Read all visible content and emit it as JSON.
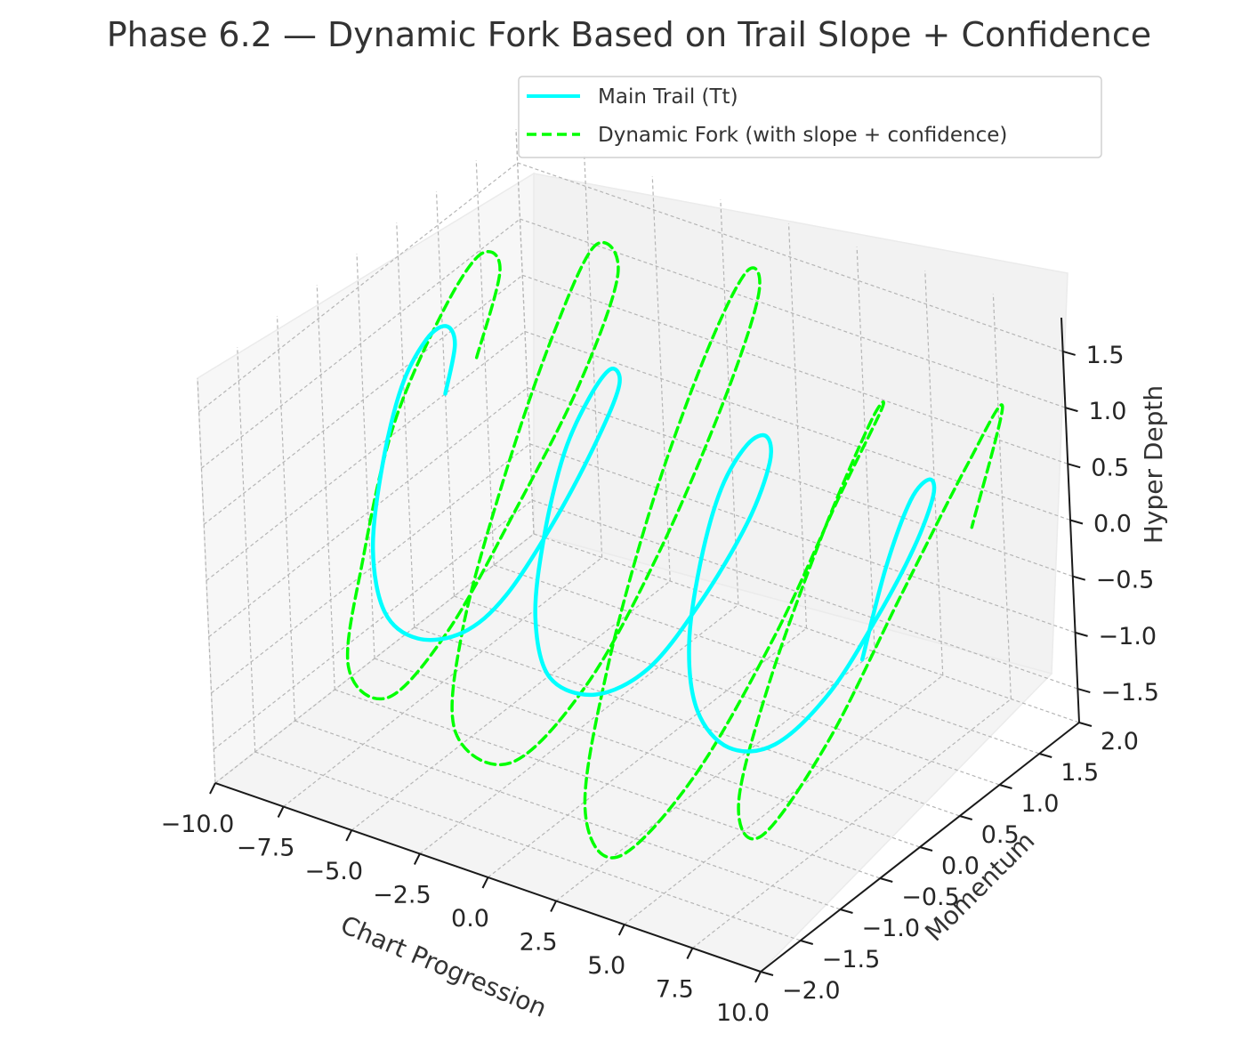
{
  "chart_data": {
    "type": "line",
    "projection": "3d",
    "title": "Phase 6.2 — Dynamic Fork Based on Trail Slope + Confidence",
    "xlabel": "Chart Progression",
    "ylabel": "Momentum",
    "zlabel": "Hyper Depth",
    "x_ticks": [
      "−10.0",
      "−7.5",
      "−5.0",
      "−2.5",
      "0.0",
      "2.5",
      "5.0",
      "7.5",
      "10.0"
    ],
    "y_ticks": [
      "−2.0",
      "−1.5",
      "−1.0",
      "−0.5",
      "0.0",
      "0.5",
      "1.0",
      "1.5",
      "2.0"
    ],
    "z_ticks": [
      "−1.5",
      "−1.0",
      "−0.5",
      "0.0",
      "0.5",
      "1.0",
      "1.5"
    ],
    "xlim": [
      -10,
      10
    ],
    "ylim": [
      -2,
      2
    ],
    "zlim": [
      -1.8,
      1.8
    ],
    "grid": true,
    "legend_position": "top-right",
    "series": [
      {
        "name": "Main Trail (Tt)",
        "color": "#00ffff",
        "style": "solid",
        "points": [
          [
            -10,
            1.0,
            0.0
          ],
          [
            -9.5,
            0.98,
            0.49
          ],
          [
            -9,
            0.72,
            0.84
          ],
          [
            -8.5,
            0.31,
            0.99
          ],
          [
            -8,
            -0.18,
            0.88
          ],
          [
            -7.5,
            -0.62,
            0.46
          ],
          [
            -7,
            -0.94,
            -0.06
          ],
          [
            -6.5,
            -0.99,
            -0.55
          ],
          [
            -6,
            -0.77,
            -0.86
          ],
          [
            -5.5,
            -0.38,
            -0.98
          ],
          [
            -5,
            0.0,
            -0.82
          ],
          [
            -4.5,
            0.5,
            -0.35
          ],
          [
            -4,
            0.9,
            0.2
          ],
          [
            -3.5,
            1.0,
            0.63
          ],
          [
            -3,
            0.74,
            0.95
          ],
          [
            -2.5,
            0.3,
            0.98
          ],
          [
            -2,
            -0.2,
            0.8
          ],
          [
            -1.5,
            -0.65,
            0.35
          ],
          [
            -1,
            -0.96,
            -0.15
          ],
          [
            -0.5,
            -0.98,
            -0.63
          ],
          [
            0,
            -0.6,
            -0.95
          ],
          [
            0.5,
            -0.1,
            -0.95
          ],
          [
            1,
            0.4,
            -0.6
          ],
          [
            1.5,
            0.85,
            -0.1
          ],
          [
            2,
            0.99,
            0.4
          ],
          [
            2.5,
            0.8,
            0.78
          ],
          [
            3,
            0.4,
            0.97
          ],
          [
            3.5,
            -0.1,
            0.9
          ],
          [
            4,
            -0.55,
            0.55
          ],
          [
            4.5,
            -0.9,
            0.05
          ],
          [
            5,
            -1.0,
            -0.45
          ],
          [
            5.5,
            -0.8,
            -0.85
          ],
          [
            6,
            -0.4,
            -1.0
          ],
          [
            6.5,
            0.1,
            -0.8
          ],
          [
            7,
            0.55,
            -0.35
          ],
          [
            7.5,
            0.9,
            0.15
          ],
          [
            8,
            1.0,
            0.6
          ],
          [
            8.5,
            0.8,
            0.9
          ],
          [
            9,
            0.4,
            0.98
          ],
          [
            9.5,
            -0.1,
            0.7
          ],
          [
            10,
            -0.6,
            0.2
          ]
        ]
      },
      {
        "name": "Dynamic Fork (with slope + confidence)",
        "color": "#00ff00",
        "style": "dashed",
        "points": [
          [
            -10,
            1.4,
            0.1
          ],
          [
            -9.6,
            1.6,
            0.8
          ],
          [
            -9.1,
            1.2,
            1.2
          ],
          [
            -8.5,
            0.5,
            1.1
          ],
          [
            -8,
            -0.3,
            0.6
          ],
          [
            -7.5,
            -0.9,
            -0.2
          ],
          [
            -7,
            -1.3,
            -0.9
          ],
          [
            -6.5,
            -1.0,
            -1.3
          ],
          [
            -6,
            -0.4,
            -1.0
          ],
          [
            -5.5,
            0.3,
            -0.3
          ],
          [
            -5,
            1.0,
            0.5
          ],
          [
            -4.6,
            1.4,
            1.3
          ],
          [
            -4.2,
            1.0,
            1.8
          ],
          [
            -3.8,
            0.3,
            1.4
          ],
          [
            -3.4,
            -0.5,
            0.6
          ],
          [
            -3,
            -1.2,
            -0.3
          ],
          [
            -2.5,
            -1.5,
            -1.0
          ],
          [
            -2,
            -1.0,
            -1.5
          ],
          [
            -1.5,
            -0.2,
            -1.2
          ],
          [
            -1,
            0.6,
            -0.4
          ],
          [
            -0.5,
            1.3,
            0.6
          ],
          [
            0,
            1.6,
            1.4
          ],
          [
            0.5,
            1.3,
            1.8
          ],
          [
            1,
            0.6,
            1.5
          ],
          [
            1.5,
            -0.3,
            0.7
          ],
          [
            2,
            -1.1,
            -0.3
          ],
          [
            2.5,
            -1.6,
            -1.2
          ],
          [
            3,
            -1.4,
            -1.7
          ],
          [
            3.5,
            -0.6,
            -1.4
          ],
          [
            4,
            0.3,
            -0.6
          ],
          [
            4.5,
            1.0,
            0.3
          ],
          [
            5,
            1.4,
            0.9
          ],
          [
            5.5,
            1.1,
            1.0
          ],
          [
            6,
            0.3,
            0.5
          ],
          [
            6.5,
            -0.6,
            -0.3
          ],
          [
            7,
            -1.2,
            -1.0
          ],
          [
            7.5,
            -1.1,
            -1.3
          ],
          [
            8,
            -0.4,
            -0.8
          ],
          [
            8.5,
            0.4,
            0.1
          ],
          [
            9,
            1.1,
            0.9
          ],
          [
            9.5,
            1.4,
            1.3
          ],
          [
            10,
            0.8,
            0.6
          ]
        ]
      }
    ]
  }
}
